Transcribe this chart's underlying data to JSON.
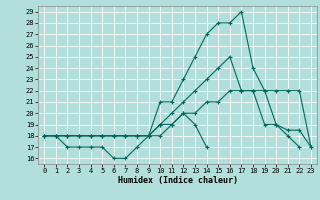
{
  "xlabel": "Humidex (Indice chaleur)",
  "background_color": "#b2dfdb",
  "grid_color": "#ffffff",
  "line_color": "#00695c",
  "xlim": [
    -0.5,
    23.5
  ],
  "ylim": [
    15.5,
    29.5
  ],
  "xticks": [
    0,
    1,
    2,
    3,
    4,
    5,
    6,
    7,
    8,
    9,
    10,
    11,
    12,
    13,
    14,
    15,
    16,
    17,
    18,
    19,
    20,
    21,
    22,
    23
  ],
  "yticks": [
    16,
    17,
    18,
    19,
    20,
    21,
    22,
    23,
    24,
    25,
    26,
    27,
    28,
    29
  ],
  "series_x": [
    [
      0,
      1,
      2,
      3,
      4,
      5,
      6,
      7,
      8,
      9,
      10,
      11,
      12,
      13,
      14,
      15,
      16,
      17,
      18,
      19,
      20,
      21,
      22
    ],
    [
      0,
      1,
      2,
      3,
      4,
      5,
      6,
      7,
      8,
      9,
      10,
      11,
      12,
      13,
      14,
      15,
      16,
      17,
      18,
      19,
      20,
      21,
      22,
      23
    ],
    [
      0,
      1,
      2,
      3,
      4,
      5,
      6,
      7,
      8,
      9,
      10,
      11,
      12,
      13,
      14,
      15,
      16,
      17,
      18,
      19,
      20,
      21,
      22,
      23
    ],
    [
      0,
      1,
      2,
      3,
      4,
      5,
      6,
      7,
      8,
      9,
      10,
      11,
      12,
      13,
      14
    ]
  ],
  "series_y": [
    [
      18,
      18,
      18,
      18,
      18,
      18,
      18,
      18,
      18,
      18,
      21,
      21,
      23,
      25,
      27,
      28,
      28,
      29,
      24,
      22,
      19,
      18,
      17
    ],
    [
      18,
      18,
      18,
      18,
      18,
      18,
      18,
      18,
      18,
      18,
      19,
      20,
      21,
      22,
      23,
      24,
      25,
      22,
      22,
      19,
      19,
      18.5,
      18.5,
      17
    ],
    [
      18,
      18,
      18,
      18,
      18,
      18,
      18,
      18,
      18,
      18,
      19,
      19,
      20,
      20,
      21,
      21,
      22,
      22,
      22,
      22,
      22,
      22,
      22,
      17
    ],
    [
      18,
      18,
      17,
      17,
      17,
      17,
      16,
      16,
      17,
      18,
      18,
      19,
      20,
      19,
      17
    ]
  ]
}
